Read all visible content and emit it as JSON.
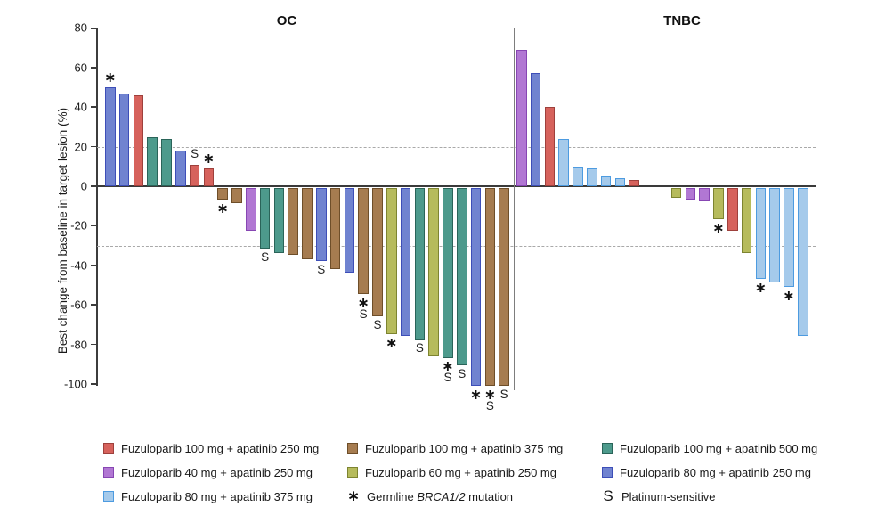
{
  "chart_data": {
    "type": "bar",
    "subtype": "waterfall",
    "ylabel": "Best change from baseline in target lesion (%)",
    "ylim": [
      -100,
      80
    ],
    "yticks": [
      80,
      60,
      40,
      20,
      0,
      -20,
      -40,
      -60,
      -80,
      -100
    ],
    "reference_lines_dashed": [
      20,
      -30
    ],
    "legend_position": "bottom",
    "grid": "off",
    "series": {
      "f100a250": {
        "label": "Fuzuloparib 100 mg + apatinib 250 mg",
        "fill": "#D6625C",
        "stroke": "#9E403C"
      },
      "f100a375": {
        "label": "Fuzuloparib 100 mg + apatinib 375 mg",
        "fill": "#A67C50",
        "stroke": "#6E4E29"
      },
      "f100a500": {
        "label": "Fuzuloparib 100 mg + apatinib 500 mg",
        "fill": "#4D9A8C",
        "stroke": "#2A6459"
      },
      "f40a250": {
        "label": "Fuzuloparib 40 mg + apatinib 250 mg",
        "fill": "#B177D3",
        "stroke": "#8746B3"
      },
      "f60a250": {
        "label": "Fuzuloparib 60 mg + apatinib 250 mg",
        "fill": "#B6BB5C",
        "stroke": "#7D8430"
      },
      "f80a250": {
        "label": "Fuzuloparib 80 mg + apatinib 250 mg",
        "fill": "#7083D0",
        "stroke": "#3D4EB8"
      },
      "f80a375": {
        "label": "Fuzuloparib 80 mg + apatinib 375 mg",
        "fill": "#A5CAEB",
        "stroke": "#4D9BE0"
      }
    },
    "marker_meanings": {
      "*": "Germline BRCA1/2 mutation",
      "S": "Platinum-sensitive"
    },
    "groups": [
      {
        "name": "OC",
        "bars": [
          {
            "v": 50,
            "s": "f80a250",
            "m": "*"
          },
          {
            "v": 47,
            "s": "f80a250"
          },
          {
            "v": 46,
            "s": "f100a250"
          },
          {
            "v": 25,
            "s": "f100a500"
          },
          {
            "v": 24,
            "s": "f100a500"
          },
          {
            "v": 18,
            "s": "f80a250"
          },
          {
            "v": 11,
            "s": "f100a250",
            "m": "S"
          },
          {
            "v": 9,
            "s": "f100a250",
            "m": "*"
          },
          {
            "v": -6,
            "s": "f100a375",
            "m": "*"
          },
          {
            "v": -8,
            "s": "f100a375"
          },
          {
            "v": -22,
            "s": "f40a250"
          },
          {
            "v": -31,
            "s": "f100a500",
            "m": "S"
          },
          {
            "v": -33,
            "s": "f100a500"
          },
          {
            "v": -34,
            "s": "f100a375"
          },
          {
            "v": -36,
            "s": "f100a375"
          },
          {
            "v": -37,
            "s": "f80a250",
            "m": "S"
          },
          {
            "v": -41,
            "s": "f100a375"
          },
          {
            "v": -43,
            "s": "f80a250"
          },
          {
            "v": -54,
            "s": "f100a375",
            "m": "*S"
          },
          {
            "v": -65,
            "s": "f100a375",
            "m": "S"
          },
          {
            "v": -74,
            "s": "f60a250",
            "m": "*"
          },
          {
            "v": -75,
            "s": "f80a250"
          },
          {
            "v": -77,
            "s": "f100a500",
            "m": "S"
          },
          {
            "v": -85,
            "s": "f60a250"
          },
          {
            "v": -86,
            "s": "f100a500",
            "m": "*S"
          },
          {
            "v": -90,
            "s": "f100a500",
            "m": "S"
          },
          {
            "v": -100,
            "s": "f80a250",
            "m": "*"
          },
          {
            "v": -100,
            "s": "f100a375",
            "m": "*S"
          },
          {
            "v": -100,
            "s": "f100a375",
            "m": "S"
          }
        ]
      },
      {
        "name": "TNBC",
        "bars": [
          {
            "v": 69,
            "s": "f40a250"
          },
          {
            "v": 57,
            "s": "f80a250"
          },
          {
            "v": 40,
            "s": "f100a250"
          },
          {
            "v": 24,
            "s": "f80a375"
          },
          {
            "v": 10,
            "s": "f80a375"
          },
          {
            "v": 9,
            "s": "f80a375"
          },
          {
            "v": 5,
            "s": "f80a375"
          },
          {
            "v": 4,
            "s": "f80a375"
          },
          {
            "v": 3,
            "s": "f100a250"
          },
          {
            "gap": true
          },
          {
            "gap": true
          },
          {
            "v": -5,
            "s": "f60a250"
          },
          {
            "v": -6,
            "s": "f40a250"
          },
          {
            "v": -7,
            "s": "f40a250"
          },
          {
            "v": -16,
            "s": "f60a250",
            "m": "*"
          },
          {
            "v": -22,
            "s": "f100a250"
          },
          {
            "v": -33,
            "s": "f60a250"
          },
          {
            "v": -46,
            "s": "f80a375",
            "m": "*"
          },
          {
            "v": -48,
            "s": "f80a375"
          },
          {
            "v": -50,
            "s": "f80a375",
            "m": "*"
          },
          {
            "v": -75,
            "s": "f80a375"
          }
        ]
      }
    ]
  },
  "titles": {
    "left": "OC",
    "right": "TNBC"
  },
  "legend": {
    "rows": [
      [
        "f100a250",
        "f100a375",
        "f100a500"
      ],
      [
        "f40a250",
        "f60a250",
        "f80a250"
      ],
      [
        "f80a375",
        "asterisk",
        "s"
      ]
    ],
    "asterisk": {
      "symbol": "*",
      "prefix": "Germline ",
      "italic": "BRCA1/2",
      "suffix": " mutation"
    },
    "s": {
      "symbol": "S",
      "label": "Platinum-sensitive"
    }
  }
}
